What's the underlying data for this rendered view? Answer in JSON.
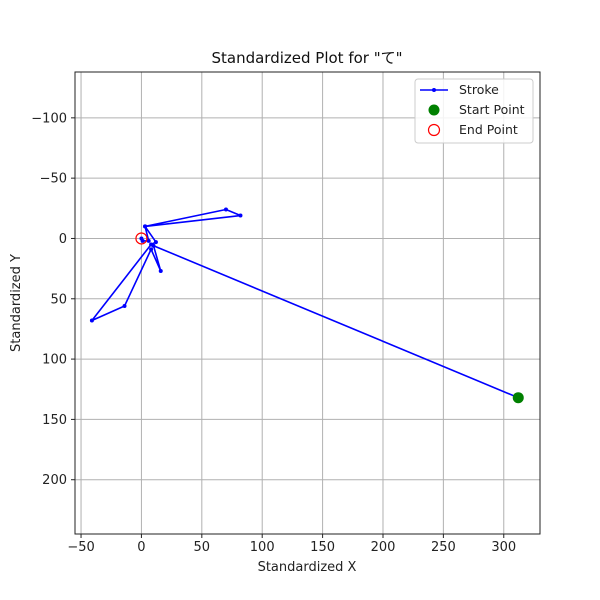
{
  "chart_data": {
    "type": "line",
    "title": "Standardized Plot for \"て\"",
    "xlabel": "Standardized X",
    "ylabel": "Standardized Y",
    "xlim": [
      -55,
      330
    ],
    "ylim": [
      -138,
      245
    ],
    "y_inverted": true,
    "grid": true,
    "x_ticks": [
      -50,
      0,
      50,
      100,
      150,
      200,
      250,
      300
    ],
    "y_ticks": [
      -100,
      -50,
      0,
      50,
      100,
      150,
      200
    ],
    "x_tick_labels": [
      "−50",
      "0",
      "50",
      "100",
      "150",
      "200",
      "250",
      "300"
    ],
    "y_tick_labels": [
      "−100",
      "−50",
      "0",
      "50",
      "100",
      "150",
      "200"
    ],
    "legend_position": "top-right",
    "series": [
      {
        "name": "Stroke",
        "color": "#0000ff",
        "marker": "dot",
        "x": [
          312,
          10,
          16,
          8,
          -14,
          -41,
          8,
          12,
          3,
          70,
          82,
          3,
          6,
          1,
          0
        ],
        "y": [
          132,
          6,
          27,
          9,
          56,
          68,
          5,
          3,
          -10,
          -24,
          -19,
          -10,
          2,
          2,
          0
        ]
      }
    ],
    "start_point": {
      "name": "Start Point",
      "x": 312,
      "y": 132,
      "color": "#008000"
    },
    "end_point": {
      "name": "End Point",
      "x": 0,
      "y": 0,
      "color": "#ff0000"
    }
  }
}
